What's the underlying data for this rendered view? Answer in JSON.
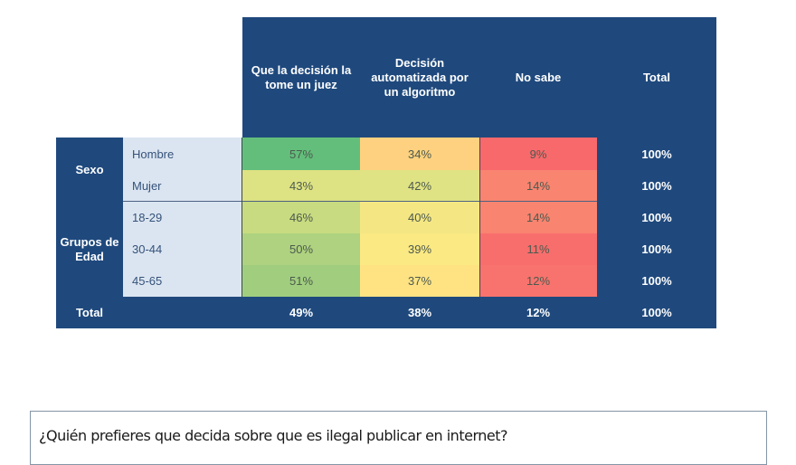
{
  "chart_data": {
    "type": "table",
    "title": "",
    "columns": [
      "Que la decisión la tome un juez",
      "Decisión automatizada por un algoritmo",
      "No sabe",
      "Total"
    ],
    "groups": [
      {
        "label": "Sexo",
        "rows": [
          {
            "label": "Hombre",
            "values": [
              "57%",
              "34%",
              "9%",
              "100%"
            ]
          },
          {
            "label": "Mujer",
            "values": [
              "43%",
              "42%",
              "14%",
              "100%"
            ]
          }
        ]
      },
      {
        "label": "Grupos de Edad",
        "rows": [
          {
            "label": "18-29",
            "values": [
              "46%",
              "40%",
              "14%",
              "100%"
            ]
          },
          {
            "label": "30-44",
            "values": [
              "50%",
              "39%",
              "11%",
              "100%"
            ]
          },
          {
            "label": "45-65",
            "values": [
              "51%",
              "37%",
              "12%",
              "100%"
            ]
          }
        ]
      }
    ],
    "total_row": {
      "label": "Total",
      "values": [
        "49%",
        "38%",
        "12%",
        "100%"
      ]
    },
    "heatmap_colors": [
      [
        "#63be7b",
        "#fdd17f",
        "#f8696b"
      ],
      [
        "#dde283",
        "#e0e383",
        "#f98470"
      ],
      [
        "#c8db80",
        "#f4e783",
        "#f98470"
      ],
      [
        "#aed27f",
        "#fbe983",
        "#f86e6c"
      ],
      [
        "#a0ce7e",
        "#ffe383",
        "#f8736d"
      ]
    ]
  },
  "question": "¿Quién prefieres que decida sobre que es ilegal publicar en internet?",
  "colors": {
    "navy": "#1f497d",
    "sublabel_bg": "#dbe5f1"
  }
}
